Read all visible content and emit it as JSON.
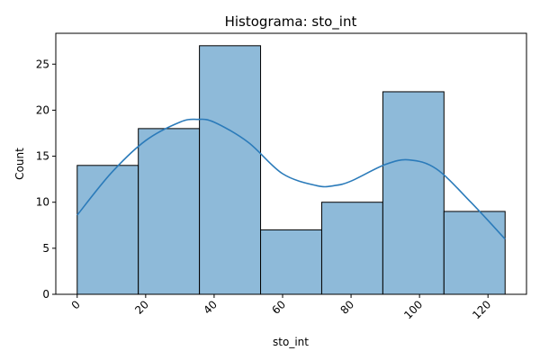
{
  "chart_data": {
    "type": "bar",
    "title": "Histograma: sto_int",
    "xlabel": "sto_int",
    "ylabel": "Count",
    "xlim": [
      -6.25,
      131.25
    ],
    "ylim": [
      0,
      28.35
    ],
    "grid": false,
    "bin_edges": [
      0,
      17.857,
      35.714,
      53.571,
      71.429,
      89.286,
      107.143,
      125
    ],
    "values": [
      14,
      18,
      27,
      7,
      10,
      22,
      9
    ],
    "x_ticks": [
      0,
      20,
      40,
      60,
      80,
      100,
      120
    ],
    "x_tick_labels": [
      "0",
      "20",
      "40",
      "60",
      "80",
      "100",
      "120"
    ],
    "y_ticks": [
      0,
      5,
      10,
      15,
      20,
      25
    ],
    "y_tick_labels": [
      "0",
      "5",
      "10",
      "15",
      "20",
      "25"
    ],
    "kde": {
      "x": [
        0,
        10,
        20,
        30,
        35,
        40,
        50,
        60,
        70,
        75,
        80,
        90,
        97,
        105,
        115,
        125
      ],
      "y": [
        8.6,
        13.2,
        16.7,
        18.7,
        19.0,
        18.7,
        16.5,
        13.1,
        11.8,
        11.8,
        12.3,
        14.1,
        14.6,
        13.6,
        10.0,
        6.0
      ]
    },
    "colors": {
      "bar_fill": "#8ebad9",
      "bar_edge": "#000000",
      "kde_line": "#2b7bba"
    }
  }
}
